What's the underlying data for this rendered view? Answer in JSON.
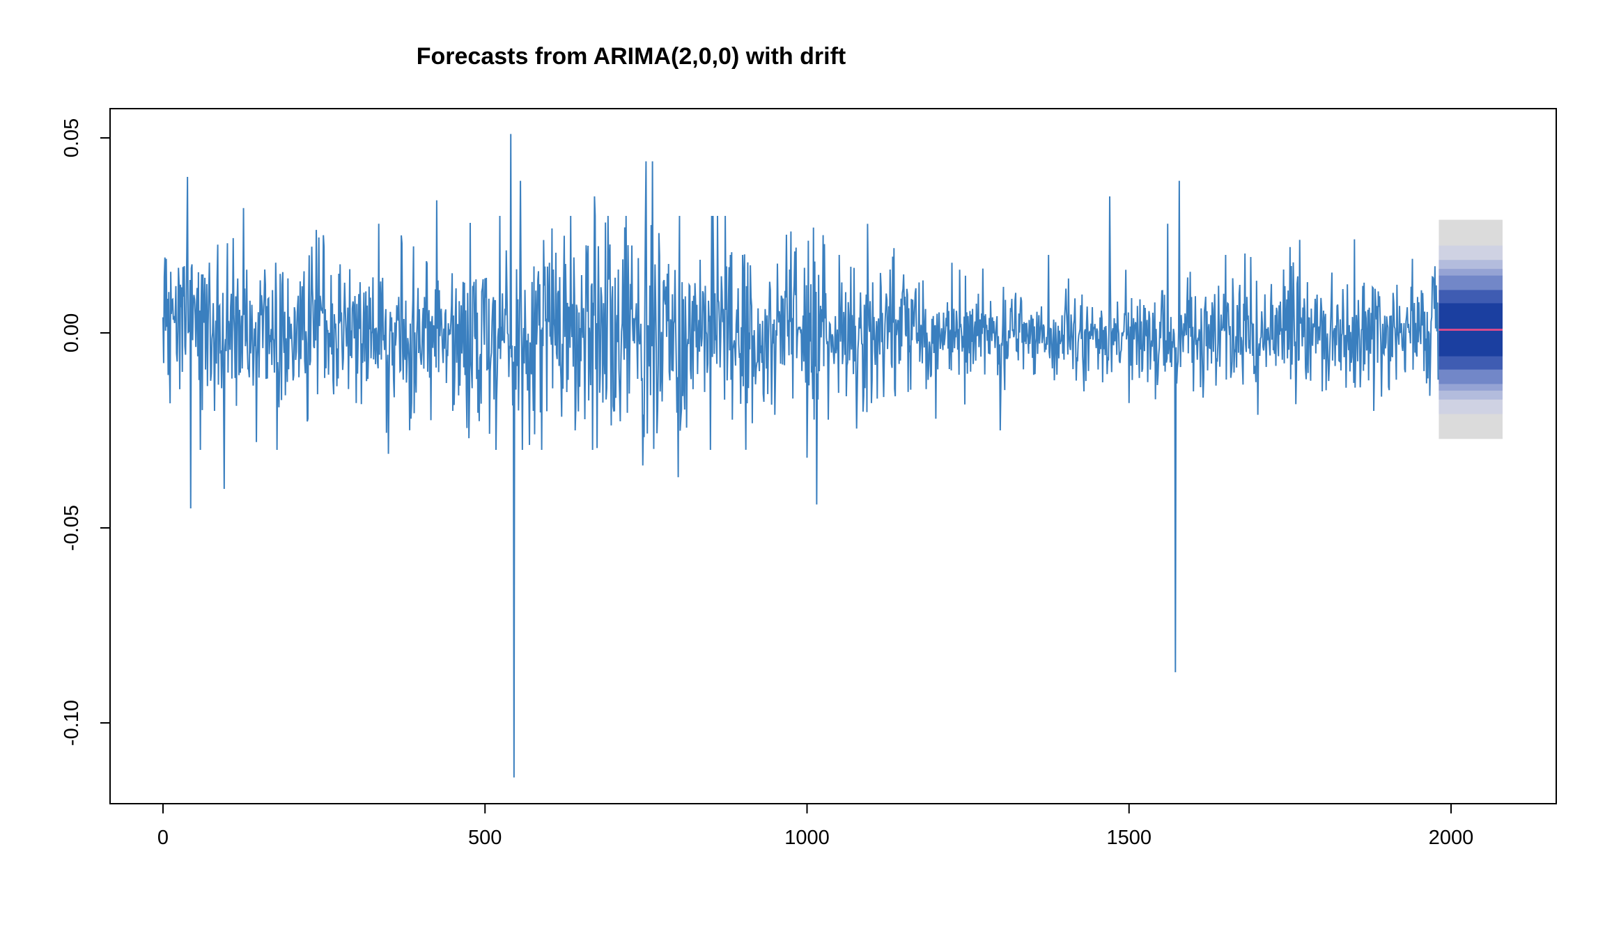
{
  "chart_data": {
    "type": "line",
    "title": "Forecasts from ARIMA(2,0,0) with drift",
    "xlabel": "",
    "ylabel": "",
    "xlim": [
      -80,
      2180
    ],
    "ylim": [
      -0.1205,
      0.0575
    ],
    "x_ticks": [
      {
        "value": 0,
        "label": "0"
      },
      {
        "value": 500,
        "label": "500"
      },
      {
        "value": 1000,
        "label": "1000"
      },
      {
        "value": 1500,
        "label": "1500"
      },
      {
        "value": 2000,
        "label": "2000"
      }
    ],
    "y_ticks": [
      {
        "value": -0.1,
        "label": "-0.10"
      },
      {
        "value": -0.05,
        "label": "-0.05"
      },
      {
        "value": 0.0,
        "label": "0.00"
      },
      {
        "value": 0.05,
        "label": "0.05"
      }
    ],
    "grid": false,
    "legend": "none",
    "series": {
      "color": "#3A7FBF",
      "n": 1981,
      "typical_sd": 0.0085,
      "points": [
        [
          0,
          0.004
        ],
        [
          5,
          0.019
        ],
        [
          10,
          -0.008
        ],
        [
          20,
          0.012
        ],
        [
          30,
          -0.01
        ],
        [
          38,
          0.04
        ],
        [
          43,
          -0.045
        ],
        [
          60,
          0.015
        ],
        [
          80,
          -0.02
        ],
        [
          95,
          -0.04
        ],
        [
          100,
          0.023
        ],
        [
          125,
          0.032
        ],
        [
          145,
          -0.028
        ],
        [
          175,
          0.018
        ],
        [
          225,
          -0.022
        ],
        [
          250,
          0.022
        ],
        [
          300,
          -0.018
        ],
        [
          335,
          0.028
        ],
        [
          350,
          -0.031
        ],
        [
          370,
          0.025
        ],
        [
          385,
          -0.022
        ],
        [
          425,
          0.034
        ],
        [
          450,
          -0.02
        ],
        [
          475,
          -0.027
        ],
        [
          500,
          0.014
        ],
        [
          540,
          0.051
        ],
        [
          545,
          -0.114
        ],
        [
          555,
          0.039
        ],
        [
          575,
          -0.02
        ],
        [
          600,
          0.018
        ],
        [
          640,
          -0.025
        ],
        [
          670,
          0.035
        ],
        [
          700,
          -0.02
        ],
        [
          745,
          -0.034
        ],
        [
          750,
          0.044
        ],
        [
          760,
          0.044
        ],
        [
          800,
          -0.037
        ],
        [
          850,
          -0.03
        ],
        [
          900,
          0.02
        ],
        [
          950,
          -0.021
        ],
        [
          975,
          0.026
        ],
        [
          1000,
          -0.032
        ],
        [
          1010,
          0.027
        ],
        [
          1015,
          -0.044
        ],
        [
          1050,
          0.02
        ],
        [
          1100,
          -0.018
        ],
        [
          1150,
          0.015
        ],
        [
          1200,
          -0.022
        ],
        [
          1225,
          0.018
        ],
        [
          1300,
          -0.025
        ],
        [
          1375,
          0.02
        ],
        [
          1430,
          -0.015
        ],
        [
          1470,
          0.035
        ],
        [
          1500,
          -0.018
        ],
        [
          1560,
          0.028
        ],
        [
          1572,
          -0.087
        ],
        [
          1578,
          0.039
        ],
        [
          1600,
          -0.015
        ],
        [
          1650,
          0.02
        ],
        [
          1700,
          -0.021
        ],
        [
          1750,
          0.022
        ],
        [
          1800,
          -0.015
        ],
        [
          1850,
          0.024
        ],
        [
          1880,
          -0.02
        ],
        [
          1940,
          0.019
        ],
        [
          1980,
          -0.012
        ]
      ]
    },
    "forecast": {
      "x_start": 1981,
      "x_end": 2080,
      "point_forecast": 0.0008,
      "point_color": "#D64B8C",
      "fan_levels": [
        {
          "level": 99,
          "lower": -0.0272,
          "upper": 0.029,
          "color": "#DBDBDB"
        },
        {
          "level": 95,
          "lower": -0.0208,
          "upper": 0.0224,
          "color": "#CFD2E3"
        },
        {
          "level": 90,
          "lower": -0.0171,
          "upper": 0.0187,
          "color": "#B3BCDD"
        },
        {
          "level": 85,
          "lower": -0.0148,
          "upper": 0.0164,
          "color": "#95A3D4"
        },
        {
          "level": 80,
          "lower": -0.0131,
          "upper": 0.0147,
          "color": "#7287C8"
        },
        {
          "level": 70,
          "lower": -0.0094,
          "upper": 0.011,
          "color": "#3F5CB2"
        },
        {
          "level": 51,
          "lower": -0.006,
          "upper": 0.0076,
          "color": "#1B3FA0"
        }
      ]
    }
  }
}
